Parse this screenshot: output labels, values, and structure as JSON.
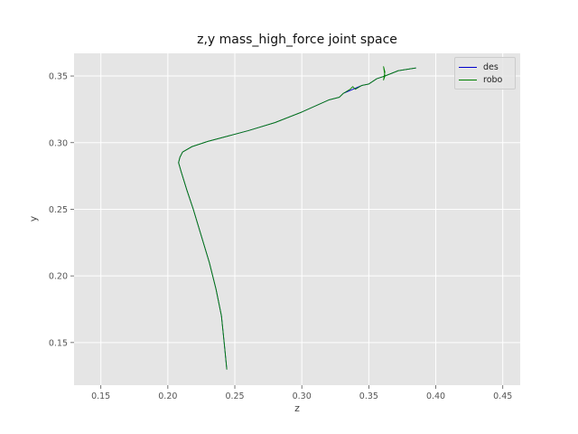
{
  "chart_data": {
    "type": "line",
    "title": "z,y mass_high_force joint space",
    "xlabel": "z",
    "ylabel": "y",
    "xlim": [
      0.13,
      0.463
    ],
    "ylim": [
      0.118,
      0.367
    ],
    "xticks": [
      0.15,
      0.2,
      0.25,
      0.3,
      0.35,
      0.4,
      0.45
    ],
    "yticks": [
      0.15,
      0.2,
      0.25,
      0.3,
      0.35
    ],
    "xtick_labels": [
      "0.15",
      "0.20",
      "0.25",
      "0.30",
      "0.35",
      "0.40",
      "0.45"
    ],
    "ytick_labels": [
      "0.15",
      "0.20",
      "0.25",
      "0.30",
      "0.35"
    ],
    "grid": true,
    "legend_position": "top-right",
    "series": [
      {
        "name": "des",
        "color": "#0000cc",
        "x": [
          0.385,
          0.372,
          0.362,
          0.356,
          0.35,
          0.345,
          0.338,
          0.331,
          0.328,
          0.32,
          0.3,
          0.28,
          0.26,
          0.245,
          0.23,
          0.218,
          0.211,
          0.209,
          0.208,
          0.21,
          0.214,
          0.219,
          0.225,
          0.231,
          0.236,
          0.24,
          0.242,
          0.244
        ],
        "y": [
          0.356,
          0.354,
          0.35,
          0.348,
          0.344,
          0.343,
          0.34,
          0.337,
          0.334,
          0.332,
          0.323,
          0.315,
          0.309,
          0.305,
          0.301,
          0.297,
          0.293,
          0.289,
          0.285,
          0.278,
          0.265,
          0.25,
          0.23,
          0.21,
          0.19,
          0.17,
          0.15,
          0.13
        ]
      },
      {
        "name": "robo",
        "color": "#008000",
        "x": [
          0.385,
          0.372,
          0.362,
          0.361,
          0.362,
          0.361,
          0.362,
          0.356,
          0.35,
          0.345,
          0.34,
          0.338,
          0.336,
          0.331,
          0.328,
          0.32,
          0.3,
          0.28,
          0.26,
          0.245,
          0.23,
          0.218,
          0.211,
          0.209,
          0.208,
          0.21,
          0.214,
          0.219,
          0.225,
          0.231,
          0.236,
          0.24,
          0.242,
          0.244
        ],
        "y": [
          0.356,
          0.354,
          0.35,
          0.357,
          0.353,
          0.347,
          0.35,
          0.348,
          0.344,
          0.343,
          0.34,
          0.342,
          0.34,
          0.337,
          0.334,
          0.332,
          0.323,
          0.315,
          0.309,
          0.305,
          0.301,
          0.297,
          0.293,
          0.289,
          0.285,
          0.278,
          0.265,
          0.25,
          0.23,
          0.21,
          0.19,
          0.17,
          0.15,
          0.13
        ]
      }
    ]
  }
}
